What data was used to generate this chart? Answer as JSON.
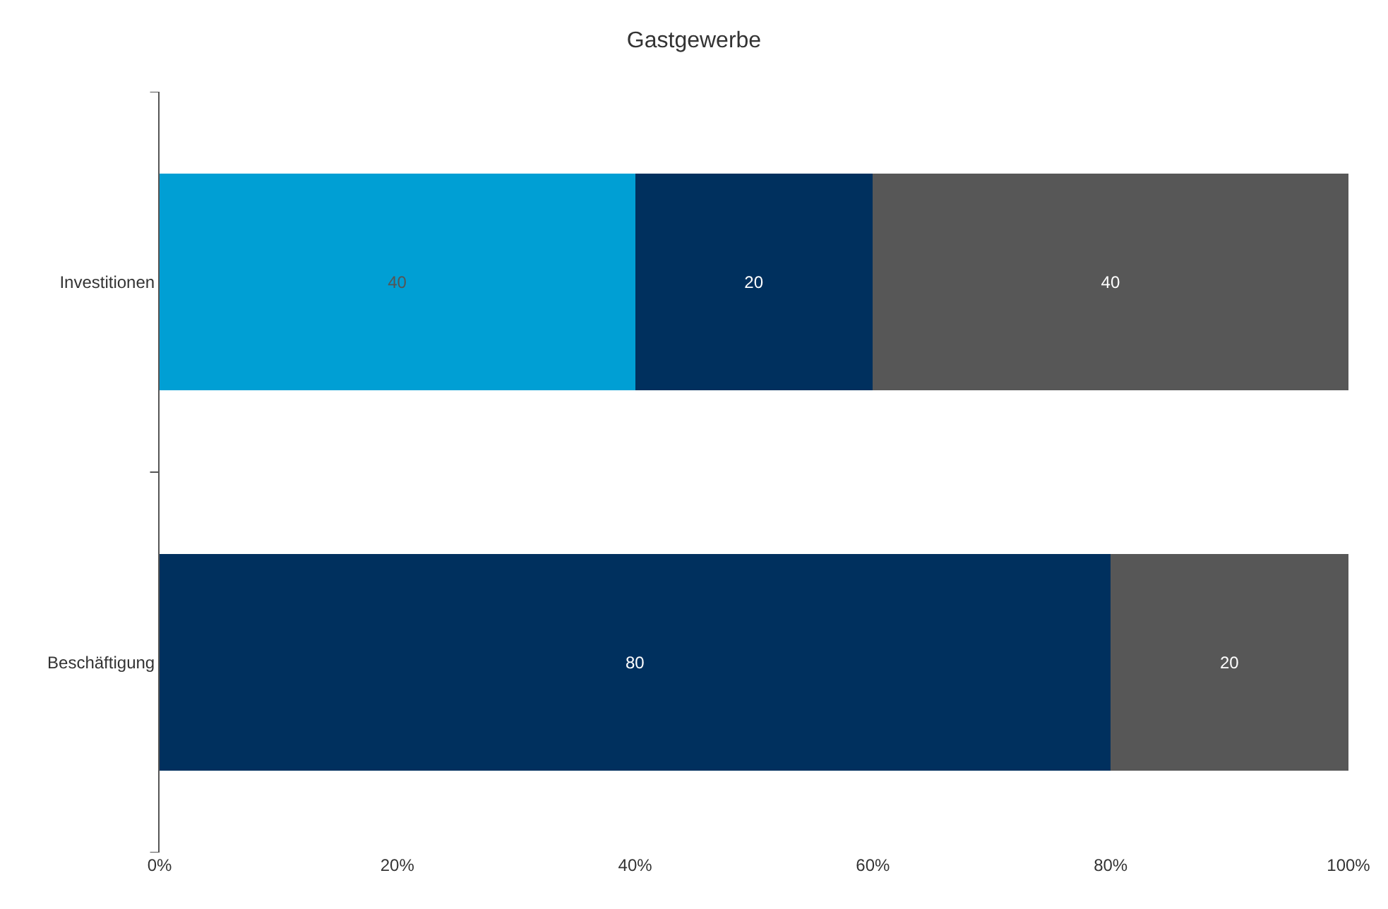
{
  "chart_data": {
    "type": "bar",
    "title": "Gastgewerbe",
    "orientation": "horizontal",
    "stacked": true,
    "categories": [
      "Investitionen",
      "Beschäftigung"
    ],
    "series": [
      {
        "color": "#009fd4",
        "values": [
          40,
          null
        ]
      },
      {
        "color": "#00305e",
        "values": [
          20,
          80
        ]
      },
      {
        "color": "#575757",
        "values": [
          40,
          20
        ]
      }
    ],
    "xlim": [
      0,
      100
    ],
    "xticks": [
      {
        "value": 0,
        "label": "0%"
      },
      {
        "value": 20,
        "label": "20%"
      },
      {
        "value": 40,
        "label": "40%"
      },
      {
        "value": 60,
        "label": "60%"
      },
      {
        "value": 80,
        "label": "80%"
      },
      {
        "value": 100,
        "label": "100%"
      }
    ],
    "data_labels": true
  }
}
